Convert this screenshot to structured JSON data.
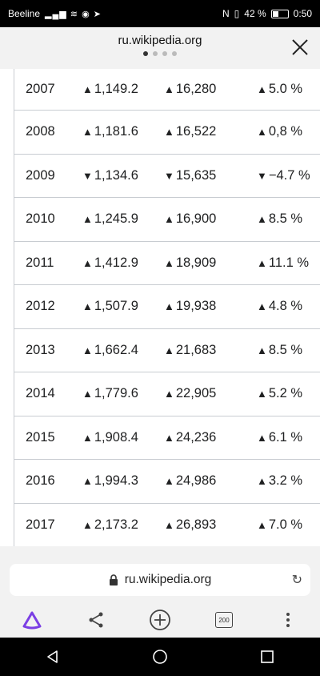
{
  "status_bar": {
    "carrier": "Beeline",
    "battery": "42 %",
    "battery_level": 0.42,
    "time": "0:50"
  },
  "browser": {
    "title": "ru.wikipedia.org",
    "page_dots": 4,
    "active_dot": 0,
    "address": "ru.wikipedia.org",
    "tabs_count": "200"
  },
  "table": {
    "rows": [
      {
        "year": "2007",
        "v1": "1,149.2",
        "d1": "up",
        "v2": "16,280",
        "d2": "up",
        "v3": "5.0 %",
        "d3": "up"
      },
      {
        "year": "2008",
        "v1": "1,181.6",
        "d1": "up",
        "v2": "16,522",
        "d2": "up",
        "v3": "0,8 %",
        "d3": "up"
      },
      {
        "year": "2009",
        "v1": "1,134.6",
        "d1": "down",
        "v2": "15,635",
        "d2": "down",
        "v3": "−4.7 %",
        "d3": "down"
      },
      {
        "year": "2010",
        "v1": "1,245.9",
        "d1": "up",
        "v2": "16,900",
        "d2": "up",
        "v3": "8.5 %",
        "d3": "up"
      },
      {
        "year": "2011",
        "v1": "1,412.9",
        "d1": "up",
        "v2": "18,909",
        "d2": "up",
        "v3": "11.1 %",
        "d3": "up"
      },
      {
        "year": "2012",
        "v1": "1,507.9",
        "d1": "up",
        "v2": "19,938",
        "d2": "up",
        "v3": "4.8 %",
        "d3": "up"
      },
      {
        "year": "2013",
        "v1": "1,662.4",
        "d1": "up",
        "v2": "21,683",
        "d2": "up",
        "v3": "8.5 %",
        "d3": "up"
      },
      {
        "year": "2014",
        "v1": "1,779.6",
        "d1": "up",
        "v2": "22,905",
        "d2": "up",
        "v3": "5.2 %",
        "d3": "up"
      },
      {
        "year": "2015",
        "v1": "1,908.4",
        "d1": "up",
        "v2": "24,236",
        "d2": "up",
        "v3": "6.1 %",
        "d3": "up"
      },
      {
        "year": "2016",
        "v1": "1,994.3",
        "d1": "up",
        "v2": "24,986",
        "d2": "up",
        "v3": "3.2 %",
        "d3": "up"
      },
      {
        "year": "2017",
        "v1": "2,173.2",
        "d1": "up",
        "v2": "26,893",
        "d2": "up",
        "v3": "7.0 %",
        "d3": "up"
      }
    ]
  },
  "colors": {
    "accent": "#7b3fe4"
  }
}
